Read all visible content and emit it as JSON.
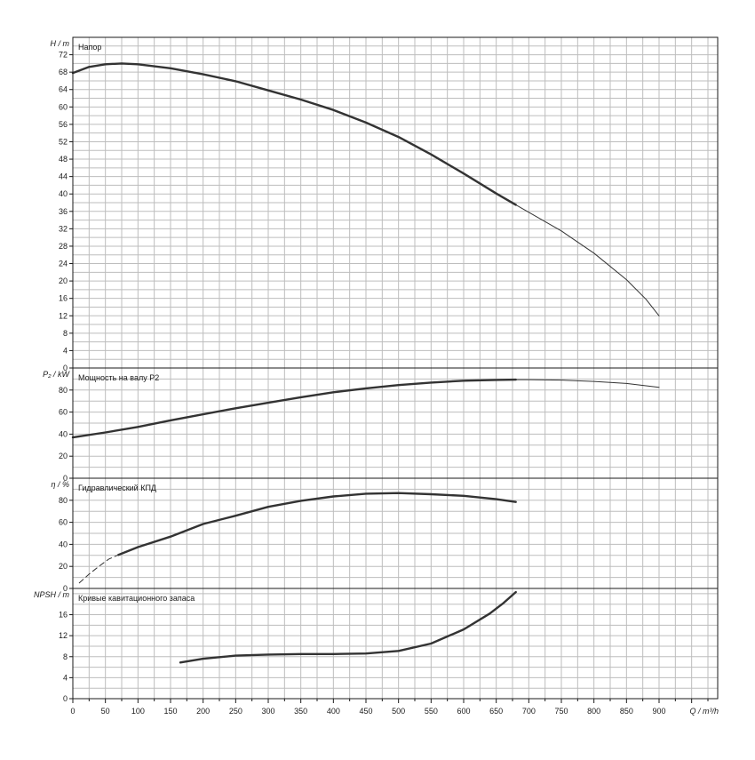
{
  "chart_data": [
    {
      "type": "line",
      "title": "Напор",
      "ylabel": "H / m",
      "ylim": [
        0,
        76
      ],
      "yticks": [
        0,
        4,
        8,
        12,
        16,
        20,
        24,
        28,
        32,
        36,
        40,
        44,
        48,
        52,
        56,
        60,
        64,
        68,
        72
      ],
      "series": [
        {
          "style": "thick",
          "color": "#333333",
          "points": [
            [
              0,
              67.8
            ],
            [
              25,
              69.2
            ],
            [
              50,
              69.8
            ],
            [
              75,
              70.0
            ],
            [
              100,
              69.8
            ],
            [
              150,
              68.9
            ],
            [
              200,
              67.5
            ],
            [
              250,
              65.9
            ],
            [
              300,
              63.8
            ],
            [
              350,
              61.7
            ],
            [
              400,
              59.3
            ],
            [
              450,
              56.4
            ],
            [
              500,
              53.1
            ],
            [
              550,
              49.1
            ],
            [
              600,
              44.7
            ],
            [
              650,
              40.1
            ],
            [
              680,
              37.5
            ]
          ]
        },
        {
          "style": "thin",
          "color": "#333333",
          "points": [
            [
              680,
              37.5
            ],
            [
              700,
              35.8
            ],
            [
              750,
              31.5
            ],
            [
              800,
              26.4
            ],
            [
              850,
              20.3
            ],
            [
              880,
              15.8
            ],
            [
              900,
              12.0
            ]
          ]
        }
      ]
    },
    {
      "type": "line",
      "title": "Мощность на валу P2",
      "ylabel": "P₂ / kW",
      "ylim": [
        0,
        100
      ],
      "yticks": [
        0,
        20,
        40,
        60,
        80
      ],
      "series": [
        {
          "style": "thick",
          "color": "#333333",
          "points": [
            [
              0,
              37.0
            ],
            [
              50,
              41.5
            ],
            [
              100,
              46.5
            ],
            [
              150,
              52.5
            ],
            [
              200,
              58.0
            ],
            [
              250,
              63.5
            ],
            [
              300,
              68.5
            ],
            [
              350,
              73.5
            ],
            [
              400,
              78.0
            ],
            [
              450,
              81.5
            ],
            [
              500,
              84.5
            ],
            [
              550,
              86.8
            ],
            [
              600,
              88.5
            ],
            [
              650,
              89.2
            ],
            [
              680,
              89.4
            ]
          ]
        },
        {
          "style": "thin",
          "color": "#333333",
          "points": [
            [
              680,
              89.4
            ],
            [
              700,
              89.4
            ],
            [
              750,
              89.0
            ],
            [
              800,
              87.8
            ],
            [
              850,
              86.0
            ],
            [
              900,
              82.5
            ]
          ]
        }
      ]
    },
    {
      "type": "line",
      "title": "Гидравлический КПД",
      "ylabel": "η / %",
      "ylim": [
        0,
        100
      ],
      "yticks": [
        0,
        20,
        40,
        60,
        80
      ],
      "series": [
        {
          "style": "dashed",
          "color": "#333333",
          "points": [
            [
              10,
              5.0
            ],
            [
              25,
              13.0
            ],
            [
              40,
              20.0
            ],
            [
              55,
              26.5
            ],
            [
              70,
              30.5
            ]
          ]
        },
        {
          "style": "thick",
          "color": "#333333",
          "points": [
            [
              70,
              30.5
            ],
            [
              100,
              37.5
            ],
            [
              150,
              47.0
            ],
            [
              200,
              58.5
            ],
            [
              250,
              66.0
            ],
            [
              300,
              74.0
            ],
            [
              350,
              79.5
            ],
            [
              400,
              83.5
            ],
            [
              450,
              86.0
            ],
            [
              500,
              86.5
            ],
            [
              550,
              85.5
            ],
            [
              600,
              84.0
            ],
            [
              650,
              81.0
            ],
            [
              680,
              78.5
            ]
          ]
        }
      ]
    },
    {
      "type": "line",
      "title": "Кривые кавитационного запаса",
      "ylabel": "NPSH / m",
      "ylim": [
        0,
        21
      ],
      "yticks": [
        0,
        4,
        8,
        12,
        16
      ],
      "series": [
        {
          "style": "thick",
          "color": "#333333",
          "points": [
            [
              165,
              6.9
            ],
            [
              200,
              7.6
            ],
            [
              250,
              8.2
            ],
            [
              300,
              8.4
            ],
            [
              350,
              8.5
            ],
            [
              400,
              8.5
            ],
            [
              450,
              8.6
            ],
            [
              500,
              9.1
            ],
            [
              550,
              10.5
            ],
            [
              600,
              13.2
            ],
            [
              640,
              16.2
            ],
            [
              660,
              18.1
            ],
            [
              680,
              20.3
            ]
          ]
        }
      ]
    }
  ],
  "x_axis": {
    "label": "Q / m³/h",
    "xlim": [
      0,
      990
    ],
    "major": 50,
    "minor": 25,
    "tick_labels": [
      "0",
      "50",
      "100",
      "150",
      "200",
      "250",
      "300",
      "350",
      "400",
      "450",
      "500",
      "550",
      "600",
      "650",
      "700",
      "750",
      "800",
      "850",
      "900"
    ]
  },
  "grid": true
}
